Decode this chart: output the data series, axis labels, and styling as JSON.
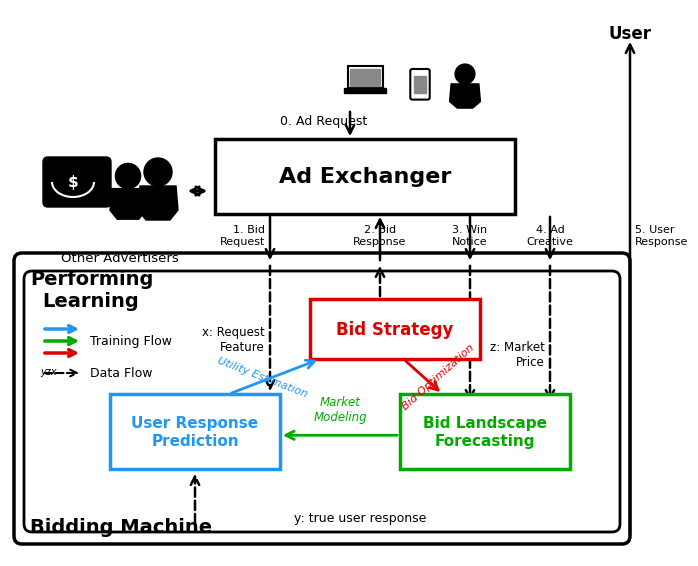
{
  "fig_width": 6.4,
  "fig_height": 5.47,
  "bg_color": "#ffffff",
  "ad_exchanger_label": "Ad Exchanger",
  "bid_strategy_label": "Bid Strategy",
  "urp_label": "User Response\nPrediction",
  "blf_label": "Bid Landscape\nForecasting",
  "performing_label": "Performing",
  "learning_label": "Learning",
  "bidding_machine_label": "Bidding Machine",
  "user_label": "User",
  "other_advertisers_label": "Other Advertisers",
  "ad_request_label": "0. Ad Request",
  "bid_request_label": "1. Bid\nRequest",
  "bid_response_label": "2. Bid\nResponse",
  "win_notice_label": "3. Win\nNotice",
  "ad_creative_label": "4. Ad\nCreative",
  "user_response_label": "5. User\nResponse",
  "x_feature_label": "x: Request\nFeature",
  "z_price_label": "z: Market\nPrice",
  "y_response_label": "y: true user response",
  "utility_estimation_label": "Utility Estimation",
  "bid_optimization_label": "Bid Optimization",
  "market_modeling_label": "Market\nModeling",
  "training_flow_label": "Training Flow",
  "data_flow_label": "Data Flow",
  "blue": "#2196F3",
  "green": "#00aa00",
  "red": "#dd0000",
  "black": "#000000"
}
